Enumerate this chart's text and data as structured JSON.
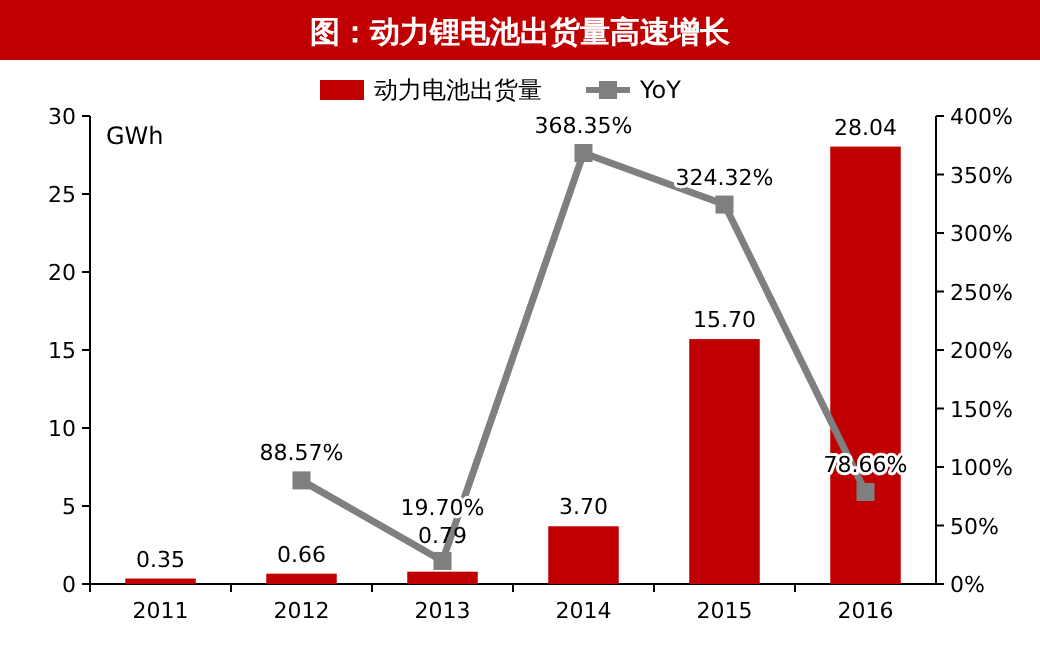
{
  "chart_data": {
    "type": "bar",
    "title": "图：动力锂电池出货量高速增长",
    "ylabel": "GWh",
    "categories": [
      "2011",
      "2012",
      "2013",
      "2014",
      "2015",
      "2016"
    ],
    "series": [
      {
        "name": "动力电池出货量",
        "color": "#c00000",
        "values": [
          0.35,
          0.66,
          0.79,
          3.7,
          15.7,
          28.04
        ],
        "value_labels": [
          "0.35",
          "0.66",
          "0.79",
          "3.70",
          "15.70",
          "28.04"
        ]
      },
      {
        "name": "YoY",
        "type": "line",
        "axis": "y2",
        "color": "#7f7f7f",
        "values": [
          null,
          88.57,
          19.7,
          368.35,
          324.32,
          78.66
        ],
        "value_labels": [
          null,
          "88.57%",
          "19.70%",
          "368.35%",
          "324.32%",
          "78.66%"
        ]
      }
    ],
    "marker": "square",
    "legend": "top",
    "grid": false,
    "ylim": [
      0,
      30
    ],
    "yticks": [
      0,
      5,
      10,
      15,
      20,
      25,
      30
    ],
    "y2lim": [
      0,
      400
    ],
    "y2ticks": [
      {
        "value": 0,
        "label": "0%"
      },
      {
        "value": 50,
        "label": "50%"
      },
      {
        "value": 100,
        "label": "100%"
      },
      {
        "value": 150,
        "label": "150%"
      },
      {
        "value": 200,
        "label": "200%"
      },
      {
        "value": 250,
        "label": "250%"
      },
      {
        "value": 300,
        "label": "300%"
      },
      {
        "value": 350,
        "label": "350%"
      },
      {
        "value": 400,
        "label": "400%"
      }
    ]
  }
}
